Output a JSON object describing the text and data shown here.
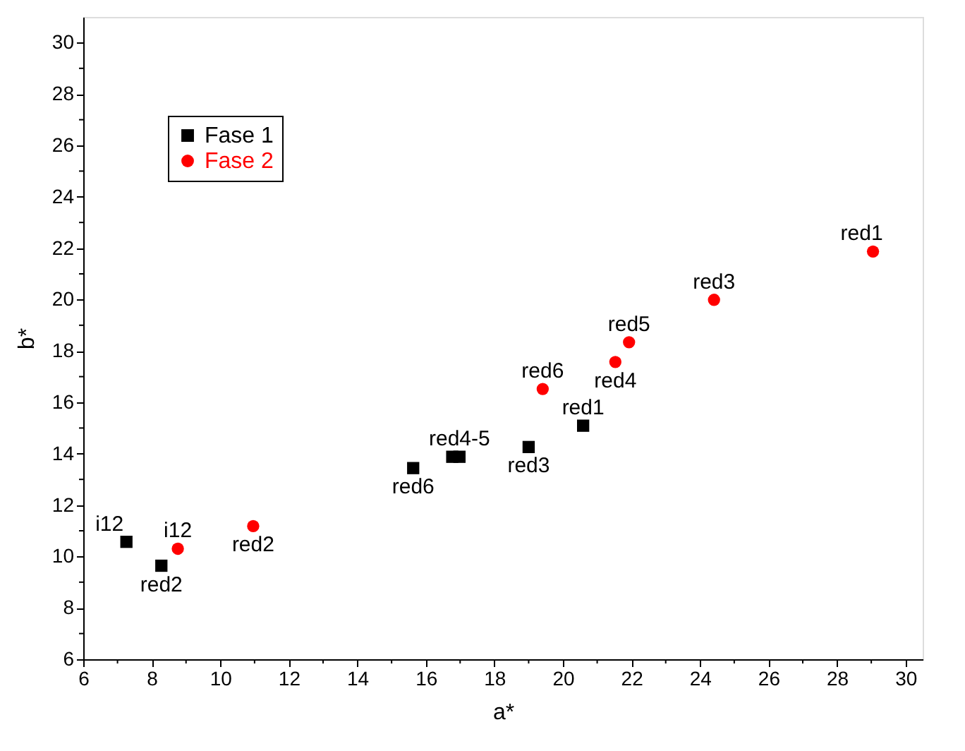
{
  "chart_data": {
    "type": "scatter",
    "xlabel": "a*",
    "ylabel": "b*",
    "xlim": [
      6,
      30.5
    ],
    "ylim": [
      6,
      31
    ],
    "xticks": [
      6,
      {
        "value": 7,
        "label": null
      },
      8,
      {
        "value": 9,
        "label": null
      },
      10,
      {
        "value": 11,
        "label": null
      },
      12,
      {
        "value": 13,
        "label": null
      },
      14,
      {
        "value": 15,
        "label": null
      },
      16,
      {
        "value": 17,
        "label": null
      },
      18,
      {
        "value": 19,
        "label": null
      },
      20,
      {
        "value": 21,
        "label": null
      },
      22,
      {
        "value": 23,
        "label": null
      },
      24,
      {
        "value": 25,
        "label": null
      },
      26,
      {
        "value": 27,
        "label": null
      },
      28,
      {
        "value": 29,
        "label": null
      },
      30
    ],
    "yticks": [
      6,
      {
        "value": 7,
        "label": null
      },
      8,
      {
        "value": 9,
        "label": null
      },
      10,
      {
        "value": 11,
        "label": null
      },
      12,
      {
        "value": 13,
        "label": null
      },
      14,
      {
        "value": 15,
        "label": null
      },
      16,
      {
        "value": 17,
        "label": null
      },
      18,
      {
        "value": 19,
        "label": null
      },
      20,
      {
        "value": 21,
        "label": null
      },
      22,
      {
        "value": 23,
        "label": null
      },
      24,
      {
        "value": 25,
        "label": null
      },
      26,
      {
        "value": 27,
        "label": null
      },
      28,
      {
        "value": 29,
        "label": null
      },
      30
    ],
    "grid": false,
    "legend": "top left",
    "series": [
      {
        "name": "Fase 1",
        "color": "#000000",
        "marker": "square",
        "x": [
          7.26,
          8.28,
          15.63,
          16.77,
          16.98,
          19.0,
          20.59
        ],
        "values": [
          10.57,
          9.64,
          13.44,
          13.88,
          13.88,
          14.26,
          15.09
        ],
        "value_labels": [
          "i12",
          "red2",
          "red6",
          null,
          "red4-5",
          "red3",
          "red1"
        ]
      },
      {
        "name": "Fase 2",
        "color": "#ff0000",
        "marker": "circle",
        "x": [
          8.76,
          10.96,
          19.41,
          21.53,
          21.93,
          24.41,
          29.05
        ],
        "values": [
          10.3,
          11.18,
          16.52,
          17.57,
          18.34,
          19.99,
          21.87
        ],
        "value_labels": [
          "i12",
          "red2",
          "red6",
          "red4",
          "red5",
          "red3",
          "red1"
        ]
      }
    ]
  }
}
